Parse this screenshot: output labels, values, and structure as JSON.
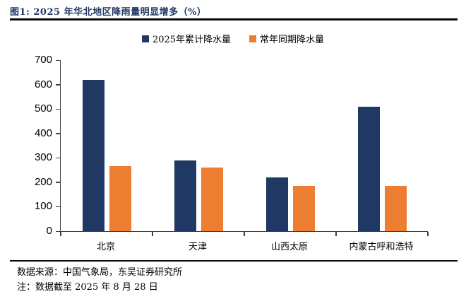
{
  "title": "图1:  2025 年华北地区降雨量明显增多（%）",
  "footer": {
    "source": "数据来源：中国气象局，东吴证券研究所",
    "note": "注：数据截至 2025 年 8 月 28 日"
  },
  "colors": {
    "series_2025": "#1f3864",
    "series_normal": "#ed7d31",
    "title": "#1f3864",
    "axis": "#404040",
    "rule": "#050a14"
  },
  "chart_data": {
    "type": "bar",
    "title": "2025 年华北地区降雨量明显增多（%）",
    "categories": [
      "北京",
      "天津",
      "山西太原",
      "内蒙古呼和浩特"
    ],
    "series": [
      {
        "name": "2025年累计降水量",
        "color": "#1f3864",
        "values": [
          620,
          290,
          220,
          510
        ]
      },
      {
        "name": "常年同期降水量",
        "color": "#ed7d31",
        "values": [
          265,
          260,
          185,
          185
        ]
      }
    ],
    "xlabel": "",
    "ylabel": "",
    "ylim": [
      0,
      700
    ],
    "yticks": [
      0,
      100,
      200,
      300,
      400,
      500,
      600,
      700
    ],
    "grid": false,
    "legend_position": "top"
  }
}
